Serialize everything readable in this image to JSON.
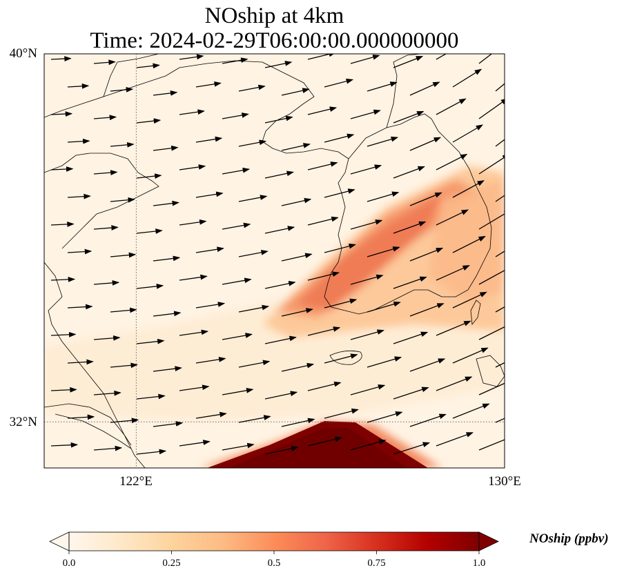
{
  "title": {
    "line1": "NOship at 4km",
    "line2": "Time: 2024-02-29T06:00:00.000000000"
  },
  "map": {
    "lon_range": [
      120,
      130
    ],
    "lat_range": [
      31,
      40
    ],
    "lat_labels": [
      "40°N",
      "32°N"
    ],
    "lon_labels": [
      "122°E",
      "130°E"
    ],
    "gridlines": {
      "lon": [
        122
      ],
      "lat": [
        32
      ],
      "style": "dotted"
    },
    "colormap": "OrRd",
    "features": [
      "coastlines",
      "winds"
    ]
  },
  "colorbar": {
    "label": "NOship (ppbv)",
    "ticks": [
      "0.0",
      "0.25",
      "0.5",
      "0.75",
      "1.0"
    ],
    "min": 0,
    "max": 1,
    "extend": "both",
    "orientation": "horizontal",
    "colors": [
      "#fff7ec",
      "#fee8c8",
      "#fdd49e",
      "#fdbb84",
      "#fc8d59",
      "#ef6548",
      "#d7301f",
      "#b30000",
      "#7f0000"
    ]
  }
}
